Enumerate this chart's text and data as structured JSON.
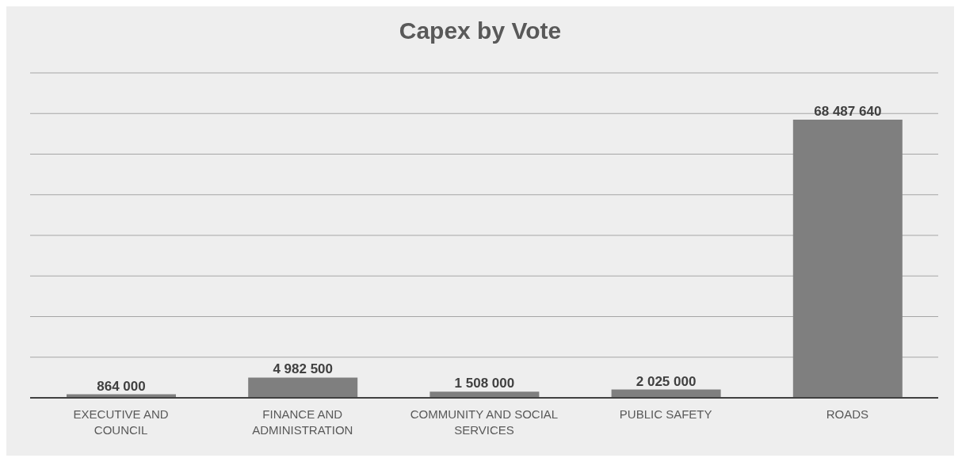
{
  "chart_data": {
    "type": "bar",
    "title": "Capex  by Vote",
    "categories": [
      "EXECUTIVE AND COUNCIL",
      "FINANCE AND ADMINISTRATION",
      "COMMUNITY AND SOCIAL SERVICES",
      "PUBLIC SAFETY",
      "ROADS"
    ],
    "values": [
      864000,
      4982500,
      1508000,
      2025000,
      68487640
    ],
    "value_labels": [
      "864 000",
      "4 982 500",
      "1 508 000",
      "2 025 000",
      "68 487 640"
    ],
    "color": "#7f7f7f",
    "ylim": [
      0,
      80000000
    ],
    "yticks": [
      {
        "value": 0,
        "label": null
      },
      {
        "value": 10000000,
        "label": null
      },
      {
        "value": 20000000,
        "label": null
      },
      {
        "value": 30000000,
        "label": null
      },
      {
        "value": 40000000,
        "label": null
      },
      {
        "value": 50000000,
        "label": null
      },
      {
        "value": 60000000,
        "label": null
      },
      {
        "value": 70000000,
        "label": null
      },
      {
        "value": 80000000,
        "label": null
      }
    ],
    "grid": "y"
  }
}
